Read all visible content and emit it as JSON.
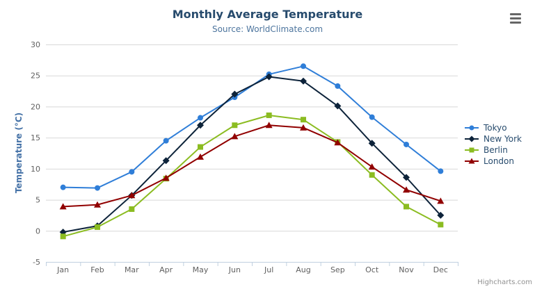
{
  "chart_data": {
    "type": "line",
    "title": "Monthly Average Temperature",
    "subtitle": "Source: WorldClimate.com",
    "ylabel": "Temperature (°C)",
    "xlabel": "",
    "categories": [
      "Jan",
      "Feb",
      "Mar",
      "Apr",
      "May",
      "Jun",
      "Jul",
      "Aug",
      "Sep",
      "Oct",
      "Nov",
      "Dec"
    ],
    "ylim": [
      -5,
      30
    ],
    "ytick_step": 5,
    "grid": true,
    "legend_position": "right",
    "series": [
      {
        "name": "Tokyo",
        "color": "#2f7ed8",
        "marker": "circle",
        "values": [
          7.0,
          6.9,
          9.5,
          14.5,
          18.2,
          21.5,
          25.2,
          26.5,
          23.3,
          18.3,
          13.9,
          9.6
        ]
      },
      {
        "name": "New York",
        "color": "#0d233a",
        "marker": "diamond",
        "values": [
          -0.2,
          0.8,
          5.7,
          11.3,
          17.0,
          22.0,
          24.8,
          24.1,
          20.1,
          14.1,
          8.6,
          2.5
        ]
      },
      {
        "name": "Berlin",
        "color": "#8bbc21",
        "marker": "square",
        "values": [
          -0.9,
          0.6,
          3.5,
          8.4,
          13.5,
          17.0,
          18.6,
          17.9,
          14.3,
          9.0,
          3.9,
          1.0
        ]
      },
      {
        "name": "London",
        "color": "#910000",
        "marker": "triangle",
        "values": [
          3.9,
          4.2,
          5.7,
          8.5,
          11.9,
          15.2,
          17.0,
          16.6,
          14.2,
          10.3,
          6.6,
          4.8
        ]
      }
    ],
    "credits": "Highcharts.com",
    "colors": {
      "title": "#274b6d",
      "subtitle": "#4d759e",
      "axis_label": "#606060",
      "axis_line": "#c0d0e0",
      "gridline": "#d8d8d8",
      "legend_text": "#274b6d",
      "credits_text": "#909090"
    }
  }
}
